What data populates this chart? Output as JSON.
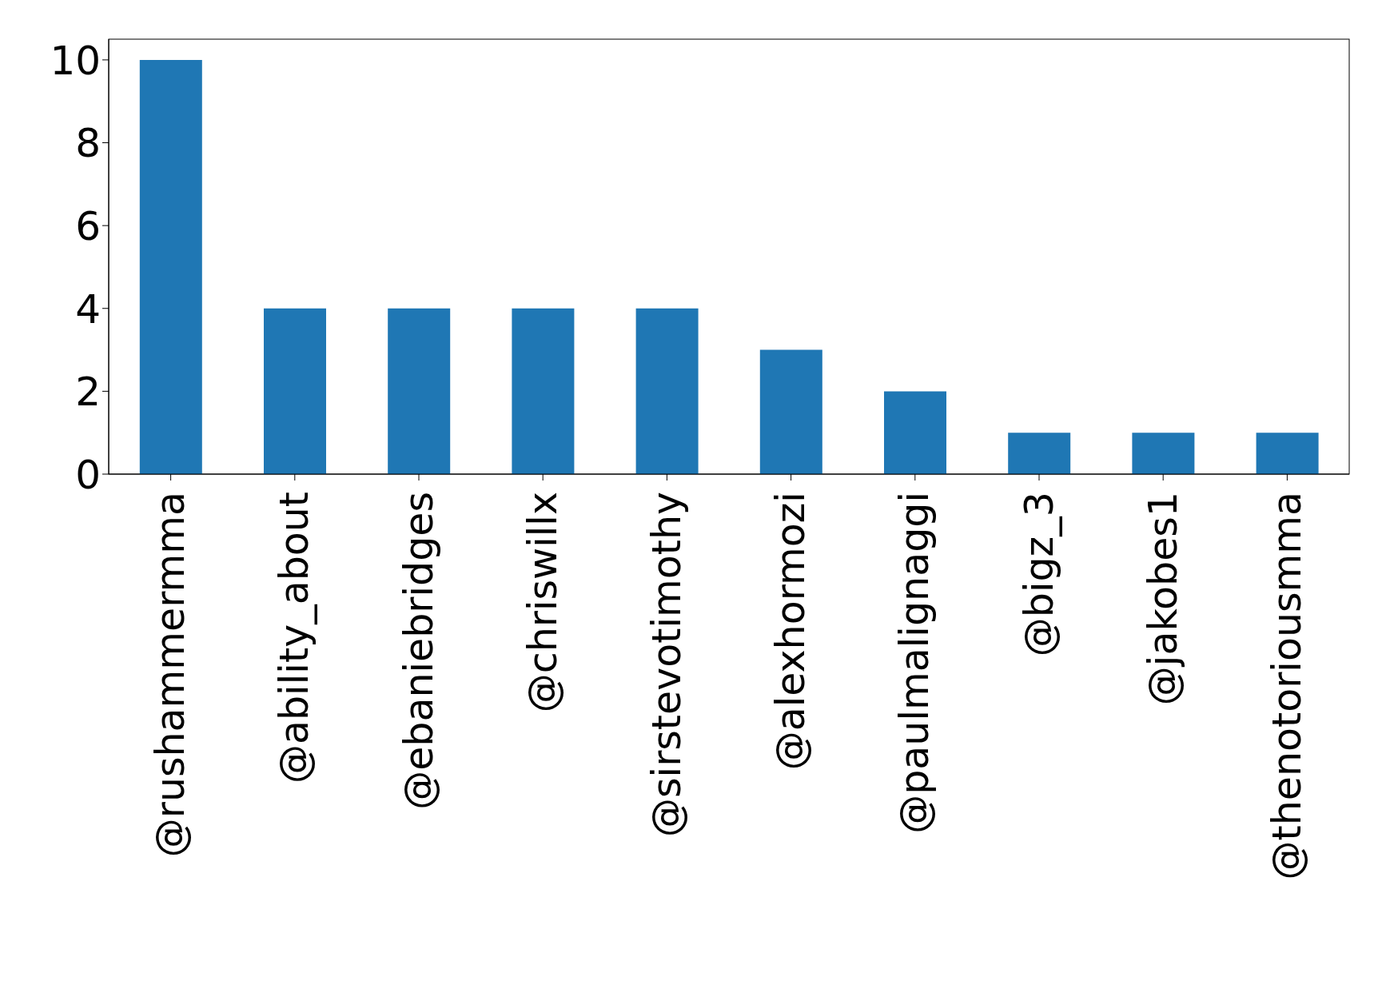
{
  "chart_data": {
    "type": "bar",
    "categories": [
      "@rushammermma",
      "@ability_about",
      "@ebaniebridges",
      "@chriswillx",
      "@sirstevotimothy",
      "@alexhormozi",
      "@paulmalignaggi",
      "@bigz_3",
      "@jakobes1",
      "@thenotoriousmma"
    ],
    "values": [
      10,
      4,
      4,
      4,
      4,
      3,
      2,
      1,
      1,
      1
    ],
    "color": "#1f77b4",
    "ylim": [
      0,
      10.5
    ],
    "yticks": [
      0,
      2,
      4,
      6,
      8,
      10
    ]
  }
}
